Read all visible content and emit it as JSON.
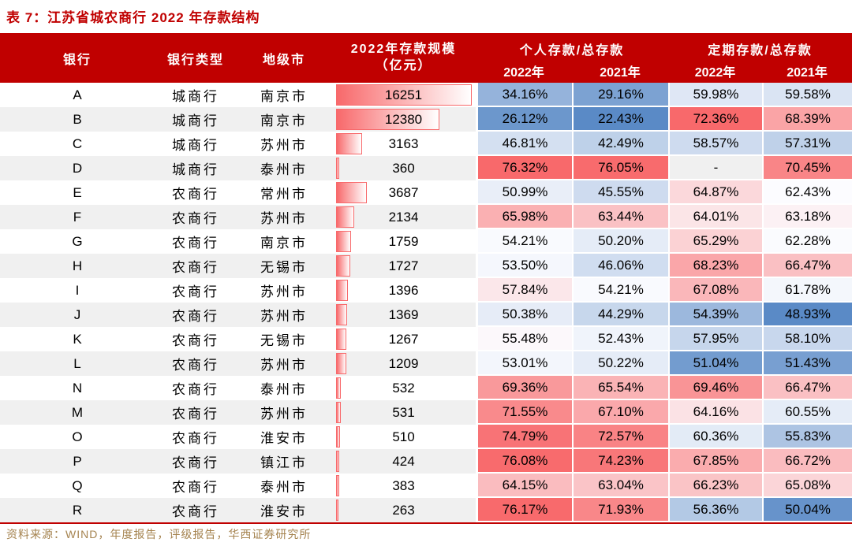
{
  "title": "表 7：江苏省城农商行 2022 年存款结构",
  "source_note": "资料来源：WIND，年度报告，评级报告，华西证券研究所",
  "header": {
    "bank": "银行",
    "bank_type": "银行类型",
    "city": "地级市",
    "scale_line1": "2022年存款规模",
    "scale_line2": "（亿元）",
    "personal_group": "个人存款/总存款",
    "term_group": "定期存款/总存款",
    "year_2022": "2022年",
    "year_2021": "2021年"
  },
  "null_label": "-",
  "colors": {
    "header_bg": "#C00000",
    "title_color": "#C00000",
    "rule_color": "#C00000",
    "source_color": "#A5834F",
    "stripe": "#F0F0F0",
    "scale_low": "#5A8AC6",
    "scale_mid": "#FCFCFF",
    "scale_high": "#F8696B",
    "bar_color": "#F8696B",
    "bar_border": "#F8696B"
  },
  "chart_data": {
    "type": "table",
    "title": "江苏省城农商行2022年存款结构",
    "columns": [
      {
        "key": "bank",
        "label": "银行"
      },
      {
        "key": "type",
        "label": "银行类型"
      },
      {
        "key": "city",
        "label": "地级市"
      },
      {
        "key": "scale",
        "label": "2022年存款规模（亿元）",
        "render": "data-bar"
      },
      {
        "key": "p2022",
        "label": "个人存款/总存款 2022年",
        "render": "heat"
      },
      {
        "key": "p2021",
        "label": "个人存款/总存款 2021年",
        "render": "heat"
      },
      {
        "key": "t2022",
        "label": "定期存款/总存款 2022年",
        "render": "heat"
      },
      {
        "key": "t2021",
        "label": "定期存款/总存款 2021年",
        "render": "heat"
      }
    ],
    "bar_max": 16251,
    "heat_groups": [
      [
        "p2022",
        "p2021"
      ],
      [
        "t2022",
        "t2021"
      ]
    ],
    "heat_scale": {
      "low": "blue",
      "mid": "white",
      "high": "red",
      "midpoint": "percentile-50"
    },
    "rows": [
      {
        "bank": "A",
        "type": "城商行",
        "city": "南京市",
        "scale": 16251,
        "p2022": 34.16,
        "p2021": 29.16,
        "t2022": 59.98,
        "t2021": 59.58
      },
      {
        "bank": "B",
        "type": "城商行",
        "city": "南京市",
        "scale": 12380,
        "p2022": 26.12,
        "p2021": 22.43,
        "t2022": 72.36,
        "t2021": 68.39
      },
      {
        "bank": "C",
        "type": "城商行",
        "city": "苏州市",
        "scale": 3163,
        "p2022": 46.81,
        "p2021": 42.49,
        "t2022": 58.57,
        "t2021": 57.31
      },
      {
        "bank": "D",
        "type": "城商行",
        "city": "泰州市",
        "scale": 360,
        "p2022": 76.32,
        "p2021": 76.05,
        "t2022": null,
        "t2021": 70.45
      },
      {
        "bank": "E",
        "type": "农商行",
        "city": "常州市",
        "scale": 3687,
        "p2022": 50.99,
        "p2021": 45.55,
        "t2022": 64.87,
        "t2021": 62.43
      },
      {
        "bank": "F",
        "type": "农商行",
        "city": "苏州市",
        "scale": 2134,
        "p2022": 65.98,
        "p2021": 63.44,
        "t2022": 64.01,
        "t2021": 63.18
      },
      {
        "bank": "G",
        "type": "农商行",
        "city": "南京市",
        "scale": 1759,
        "p2022": 54.21,
        "p2021": 50.2,
        "t2022": 65.29,
        "t2021": 62.28
      },
      {
        "bank": "H",
        "type": "农商行",
        "city": "无锡市",
        "scale": 1727,
        "p2022": 53.5,
        "p2021": 46.06,
        "t2022": 68.23,
        "t2021": 66.47
      },
      {
        "bank": "I",
        "type": "农商行",
        "city": "苏州市",
        "scale": 1396,
        "p2022": 57.84,
        "p2021": 54.21,
        "t2022": 67.08,
        "t2021": 61.78
      },
      {
        "bank": "J",
        "type": "农商行",
        "city": "苏州市",
        "scale": 1369,
        "p2022": 50.38,
        "p2021": 44.29,
        "t2022": 54.39,
        "t2021": 48.93
      },
      {
        "bank": "K",
        "type": "农商行",
        "city": "无锡市",
        "scale": 1267,
        "p2022": 55.48,
        "p2021": 52.43,
        "t2022": 57.95,
        "t2021": 58.1
      },
      {
        "bank": "L",
        "type": "农商行",
        "city": "苏州市",
        "scale": 1209,
        "p2022": 53.01,
        "p2021": 50.22,
        "t2022": 51.04,
        "t2021": 51.43
      },
      {
        "bank": "N",
        "type": "农商行",
        "city": "泰州市",
        "scale": 532,
        "p2022": 69.36,
        "p2021": 65.54,
        "t2022": 69.46,
        "t2021": 66.47
      },
      {
        "bank": "M",
        "type": "农商行",
        "city": "苏州市",
        "scale": 531,
        "p2022": 71.55,
        "p2021": 67.1,
        "t2022": 64.16,
        "t2021": 60.55
      },
      {
        "bank": "O",
        "type": "农商行",
        "city": "淮安市",
        "scale": 510,
        "p2022": 74.79,
        "p2021": 72.57,
        "t2022": 60.36,
        "t2021": 55.83
      },
      {
        "bank": "P",
        "type": "农商行",
        "city": "镇江市",
        "scale": 424,
        "p2022": 76.08,
        "p2021": 74.23,
        "t2022": 67.85,
        "t2021": 66.72
      },
      {
        "bank": "Q",
        "type": "农商行",
        "city": "泰州市",
        "scale": 383,
        "p2022": 64.15,
        "p2021": 63.04,
        "t2022": 66.23,
        "t2021": 65.08
      },
      {
        "bank": "R",
        "type": "农商行",
        "city": "淮安市",
        "scale": 263,
        "p2022": 76.17,
        "p2021": 71.93,
        "t2022": 56.36,
        "t2021": 50.04
      }
    ]
  }
}
